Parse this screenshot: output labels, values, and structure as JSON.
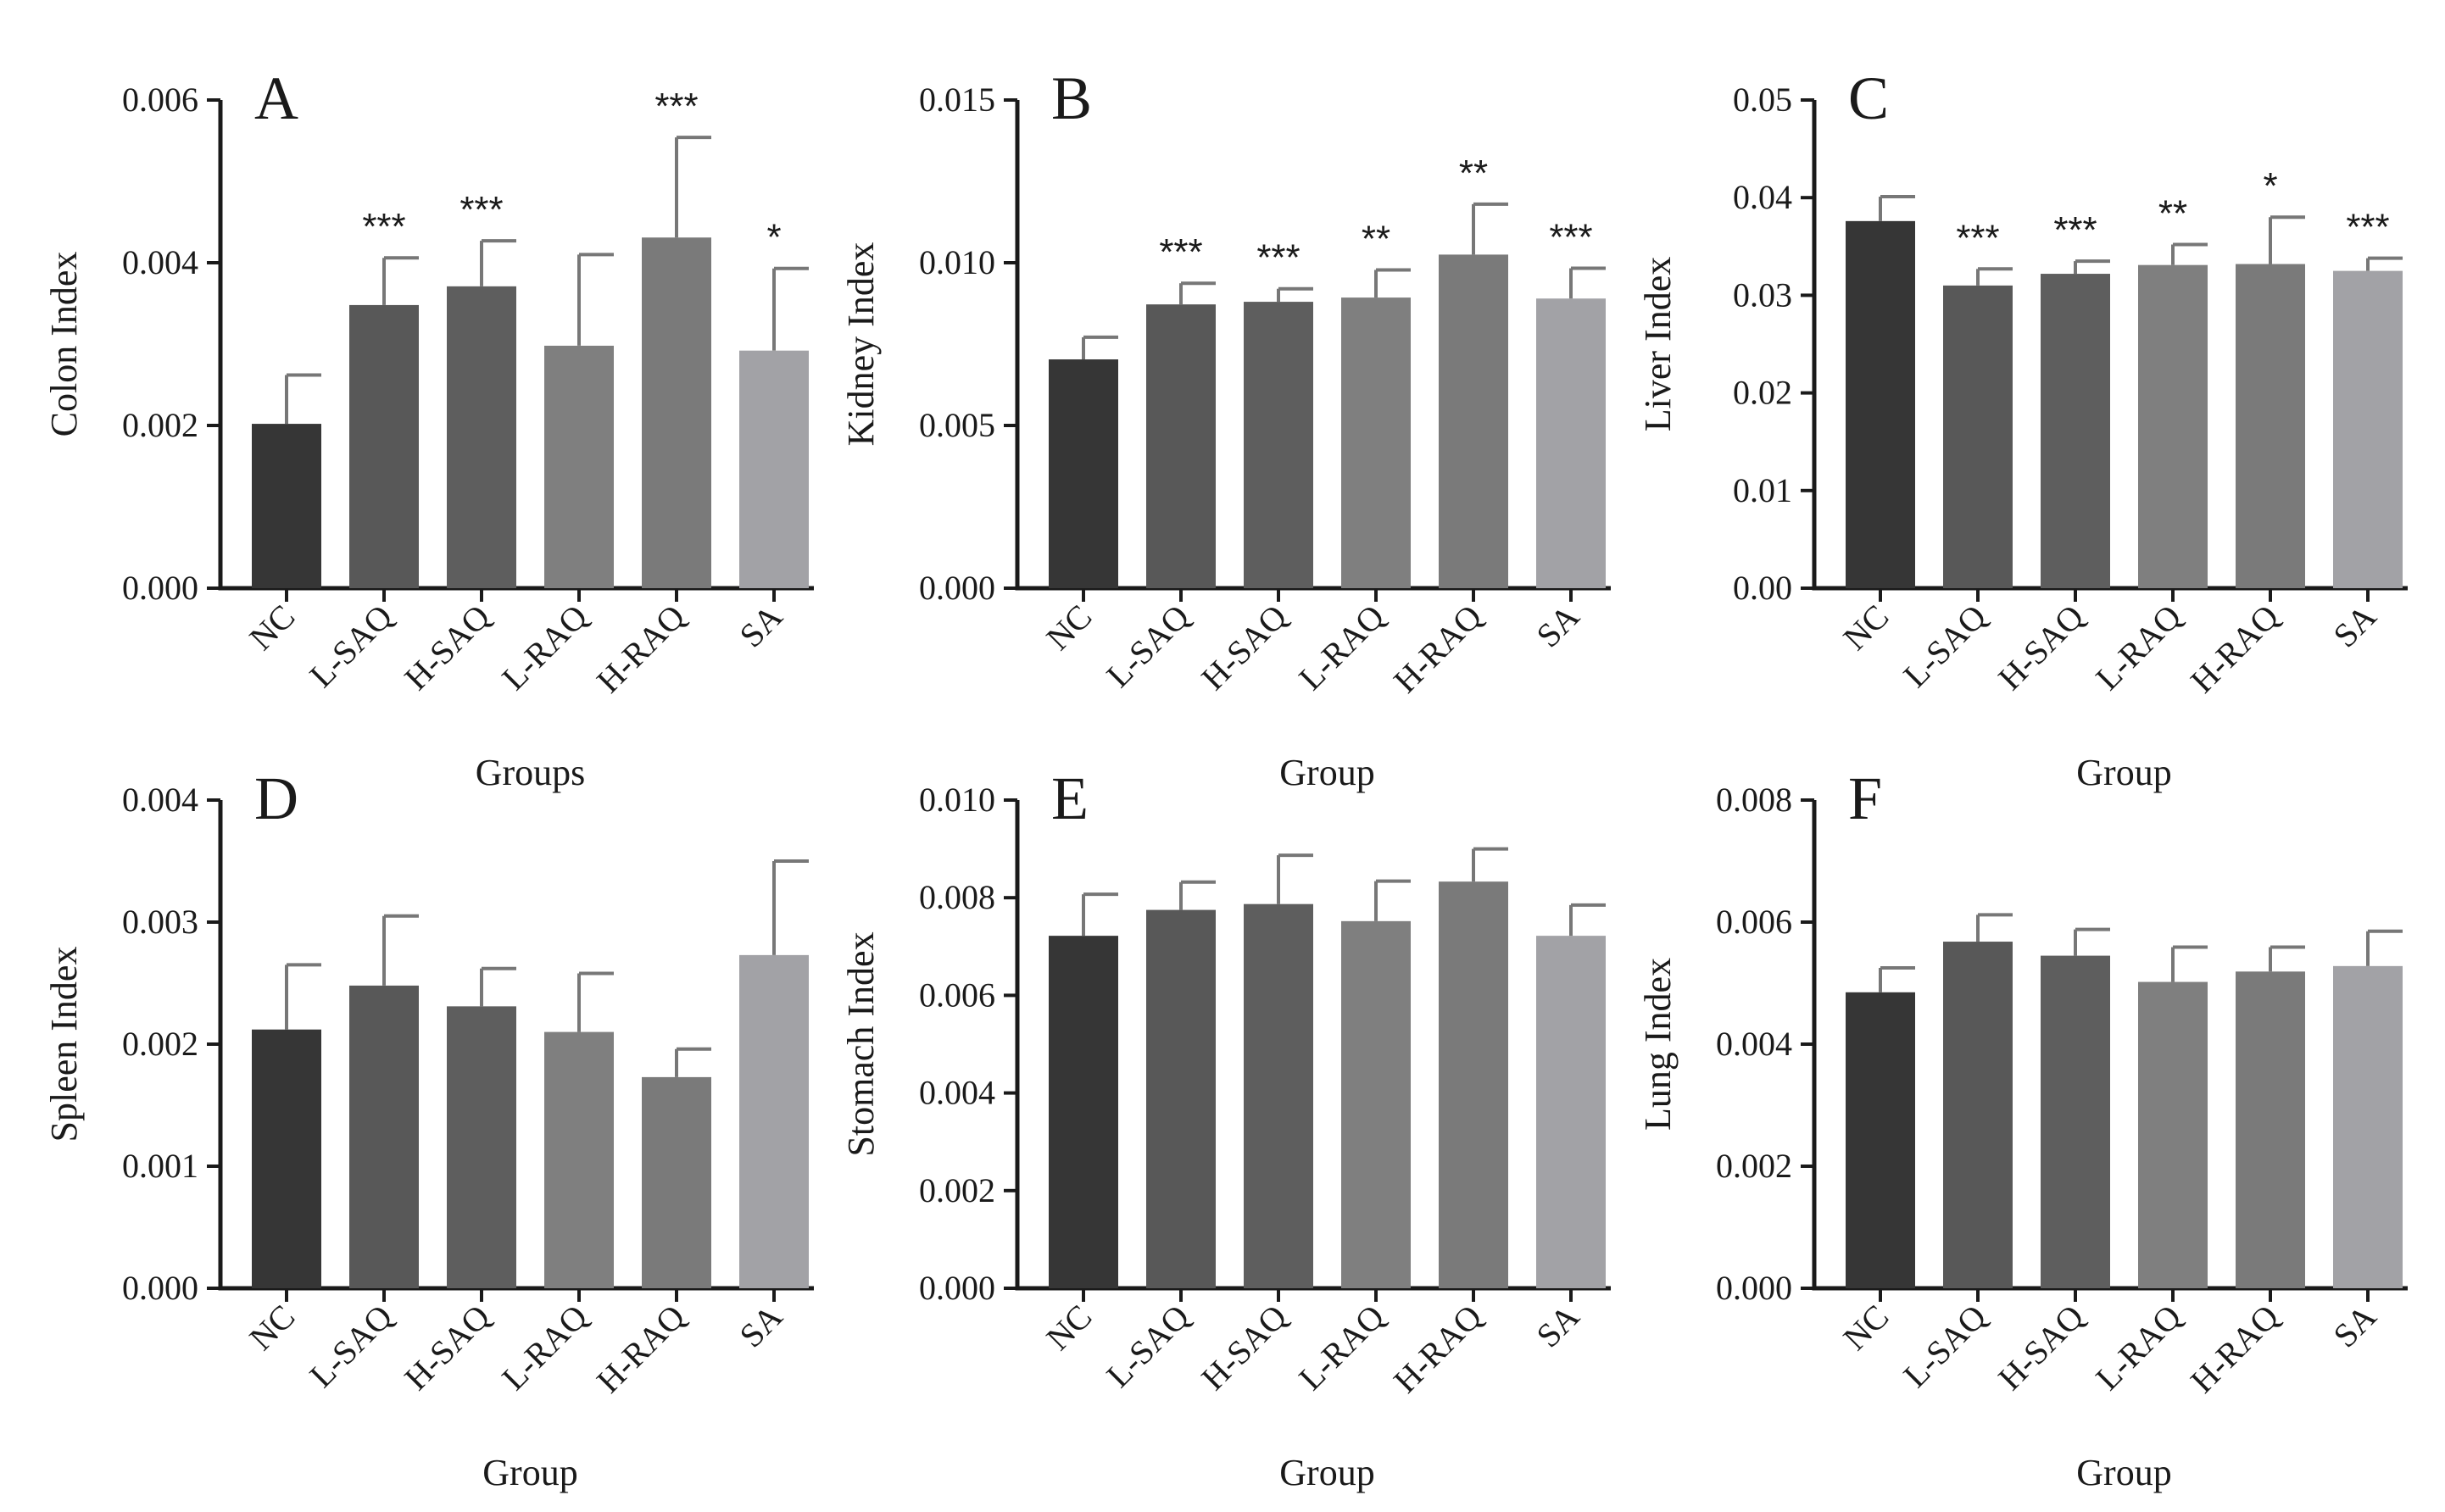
{
  "chart_data": [
    {
      "type": "bar",
      "panel": "A",
      "categories": [
        "NC",
        "L-SAQ",
        "H-SAQ",
        "L-RAQ",
        "H-RAQ",
        "SA"
      ],
      "values": [
        0.00202,
        0.00348,
        0.00371,
        0.00298,
        0.00431,
        0.00292
      ],
      "errors": [
        0.0006,
        0.00058,
        0.00056,
        0.00112,
        0.00123,
        0.00101
      ],
      "significance": [
        "",
        "***",
        "***",
        "",
        "***",
        "*"
      ],
      "ylabel": "Colon Index",
      "xlabel": "Groups",
      "ylim": [
        0,
        0.006
      ],
      "yticks": [
        "0.000",
        "0.002",
        "0.004",
        "0.006"
      ],
      "bar_colors": [
        "#363636",
        "#585858",
        "#5e5e5e",
        "#7f7f7f",
        "#7a7a7a",
        "#a2a2a6"
      ]
    },
    {
      "type": "bar",
      "panel": "B",
      "categories": [
        "NC",
        "L-SAQ",
        "H-SAQ",
        "L-RAQ",
        "H-RAQ",
        "SA"
      ],
      "values": [
        0.00703,
        0.00872,
        0.0088,
        0.00893,
        0.01025,
        0.0089
      ],
      "errors": [
        0.00068,
        0.00065,
        0.0004,
        0.00085,
        0.00155,
        0.00093
      ],
      "significance": [
        "",
        "***",
        "***",
        "**",
        "**",
        "***"
      ],
      "ylabel": "Kidney Index",
      "xlabel": "Group",
      "ylim": [
        0,
        0.015
      ],
      "yticks": [
        "0.000",
        "0.005",
        "0.010",
        "0.015"
      ],
      "bar_colors": [
        "#363636",
        "#585858",
        "#5e5e5e",
        "#7f7f7f",
        "#7a7a7a",
        "#a2a2a6"
      ]
    },
    {
      "type": "bar",
      "panel": "C",
      "categories": [
        "NC",
        "L-SAQ",
        "H-SAQ",
        "L-RAQ",
        "H-RAQ",
        "SA"
      ],
      "values": [
        0.0376,
        0.031,
        0.0322,
        0.0331,
        0.0332,
        0.0325
      ],
      "errors": [
        0.0025,
        0.0017,
        0.0013,
        0.0021,
        0.0048,
        0.0013
      ],
      "significance": [
        "",
        "***",
        "***",
        "**",
        "*",
        "***"
      ],
      "ylabel": "Liver Index",
      "xlabel": "Group",
      "ylim": [
        0,
        0.05
      ],
      "yticks": [
        "0.00",
        "0.01",
        "0.02",
        "0.03",
        "0.04",
        "0.05"
      ],
      "bar_colors": [
        "#363636",
        "#585858",
        "#5e5e5e",
        "#7f7f7f",
        "#7a7a7a",
        "#a2a2a6"
      ]
    },
    {
      "type": "bar",
      "panel": "D",
      "categories": [
        "NC",
        "L-SAQ",
        "H-SAQ",
        "L-RAQ",
        "H-RAQ",
        "SA"
      ],
      "values": [
        0.00212,
        0.00248,
        0.00231,
        0.0021,
        0.00173,
        0.00273
      ],
      "errors": [
        0.00053,
        0.00057,
        0.00031,
        0.00048,
        0.00023,
        0.00077
      ],
      "significance": [
        "",
        "",
        "",
        "",
        "",
        ""
      ],
      "ylabel": "Spleen Index",
      "xlabel": "Group",
      "ylim": [
        0,
        0.004
      ],
      "yticks": [
        "0.000",
        "0.001",
        "0.002",
        "0.003",
        "0.004"
      ],
      "bar_colors": [
        "#363636",
        "#585858",
        "#5e5e5e",
        "#7f7f7f",
        "#7a7a7a",
        "#a2a2a6"
      ]
    },
    {
      "type": "bar",
      "panel": "E",
      "categories": [
        "NC",
        "L-SAQ",
        "H-SAQ",
        "L-RAQ",
        "H-RAQ",
        "SA"
      ],
      "values": [
        0.00722,
        0.00775,
        0.00787,
        0.00752,
        0.00833,
        0.00722
      ],
      "errors": [
        0.00085,
        0.00057,
        0.001,
        0.00082,
        0.00067,
        0.00063
      ],
      "significance": [
        "",
        "",
        "",
        "",
        "",
        ""
      ],
      "ylabel": "Stomach Index",
      "xlabel": "Group",
      "ylim": [
        0,
        0.01
      ],
      "yticks": [
        "0.000",
        "0.002",
        "0.004",
        "0.006",
        "0.008",
        "0.010"
      ],
      "bar_colors": [
        "#363636",
        "#585858",
        "#5e5e5e",
        "#7f7f7f",
        "#7a7a7a",
        "#a2a2a6"
      ]
    },
    {
      "type": "bar",
      "panel": "F",
      "categories": [
        "NC",
        "L-SAQ",
        "H-SAQ",
        "L-RAQ",
        "H-RAQ",
        "SA"
      ],
      "values": [
        0.00485,
        0.00568,
        0.00545,
        0.00502,
        0.00519,
        0.00528
      ],
      "errors": [
        0.0004,
        0.00044,
        0.00043,
        0.00057,
        0.0004,
        0.00057
      ],
      "significance": [
        "",
        "",
        "",
        "",
        "",
        ""
      ],
      "ylabel": "Lung Index",
      "xlabel": "Group",
      "ylim": [
        0,
        0.008
      ],
      "yticks": [
        "0.000",
        "0.002",
        "0.004",
        "0.006",
        "0.008"
      ],
      "bar_colors": [
        "#363636",
        "#585858",
        "#5e5e5e",
        "#7f7f7f",
        "#7a7a7a",
        "#a2a2a6"
      ]
    }
  ]
}
